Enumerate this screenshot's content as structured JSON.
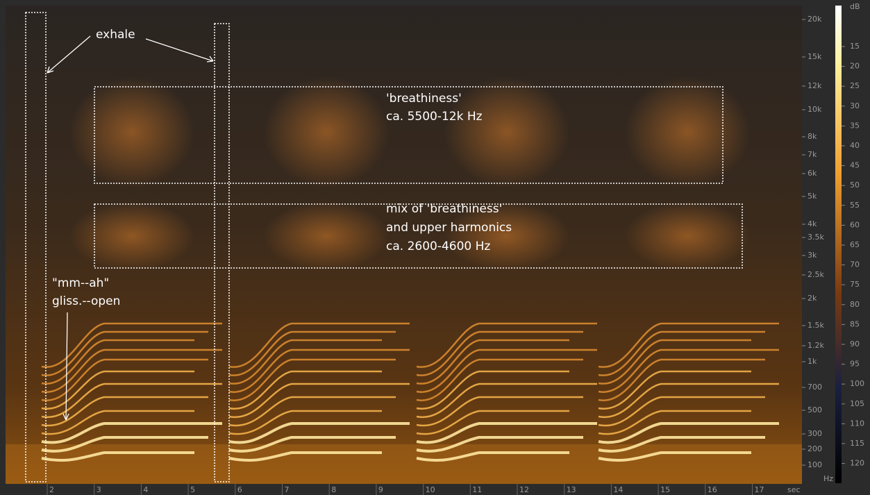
{
  "annotations": {
    "exhale": "exhale",
    "breathiness": [
      "'breathiness'",
      "ca. 5500-12k Hz"
    ],
    "mix": [
      "mix of 'breathiness'",
      "and upper harmonics",
      "ca. 2600-4600 Hz"
    ],
    "gliss": [
      "\"mm--ah\"",
      "gliss.--open"
    ]
  },
  "frequency_axis": {
    "labels": [
      "20k",
      "15k",
      "12k",
      "10k",
      "8k",
      "7k",
      "6k",
      "5k",
      "4k",
      "3.5k",
      "3k",
      "2.5k",
      "2k",
      "1.5k",
      "1.2k",
      "1k",
      "700",
      "500",
      "300",
      "200",
      "100"
    ],
    "unit": "Hz"
  },
  "time_axis": {
    "labels": [
      "2",
      "3",
      "4",
      "5",
      "6",
      "7",
      "8",
      "9",
      "10",
      "11",
      "12",
      "13",
      "14",
      "15",
      "16",
      "17"
    ],
    "unit": "sec"
  },
  "db_scale": {
    "unit": "dB",
    "labels": [
      "15",
      "20",
      "25",
      "30",
      "35",
      "40",
      "45",
      "50",
      "55",
      "60",
      "65",
      "70",
      "75",
      "80",
      "85",
      "90",
      "95",
      "100",
      "105",
      "110",
      "115",
      "120"
    ]
  }
}
